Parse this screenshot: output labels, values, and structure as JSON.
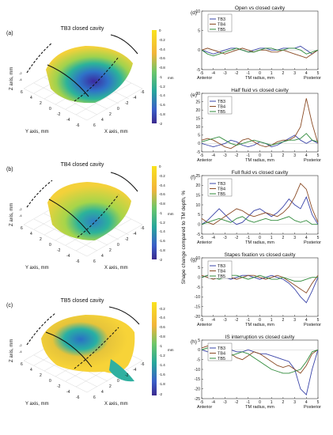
{
  "left_panels": [
    {
      "tag": "(a)",
      "title": "TB3 closed cavity",
      "zlabel": "Z axis, mm",
      "ylabel": "Y axis, mm",
      "xlabel": "X axis, mm",
      "yticks": [
        "6",
        "4",
        "2",
        "0",
        "-2",
        "-4",
        "-6"
      ],
      "xticks": [
        "-6",
        "-4",
        "-2",
        "0",
        "2",
        "4",
        "6"
      ],
      "zticks": [
        "-2",
        "-4"
      ],
      "colorbar": {
        "ticks": [
          "0",
          "-0.2",
          "-0.4",
          "-0.6",
          "-0.8",
          "-1",
          "-1.2",
          "-1.4",
          "-1.6",
          "-1.8",
          "-2"
        ],
        "unit": "mm"
      }
    },
    {
      "tag": "(b)",
      "title": "TB4 closed cavity",
      "zlabel": "Z axis, mm",
      "ylabel": "Y axis, mm",
      "xlabel": "X axis, mm",
      "yticks": [
        "6",
        "4",
        "2",
        "0",
        "-2",
        "-4",
        "-6"
      ],
      "xticks": [
        "-6",
        "-4",
        "-2",
        "0",
        "2",
        "4",
        "6"
      ],
      "zticks": [
        "-2",
        "-4"
      ],
      "colorbar": {
        "ticks": [
          "0",
          "-0.2",
          "-0.4",
          "-0.6",
          "-0.8",
          "-1",
          "-1.2",
          "-1.4",
          "-1.6",
          "-1.8",
          "-2"
        ],
        "unit": "mm"
      }
    },
    {
      "tag": "(c)",
      "title": "TB5 closed cavity",
      "zlabel": "Z axis, mm",
      "ylabel": "Y axis, mm",
      "xlabel": "X axis, mm",
      "yticks": [
        "6",
        "4",
        "2",
        "0",
        "-2",
        "-4",
        "-6"
      ],
      "xticks": [
        "-6",
        "-4",
        "-2",
        "0",
        "2",
        "4",
        "6"
      ],
      "zticks": [
        "-2",
        "-4"
      ],
      "colorbar": {
        "ticks": [
          "-0.2",
          "-0.4",
          "-0.6",
          "-0.8",
          "-1",
          "-1.2",
          "-1.4",
          "-1.6",
          "-1.8",
          "-2"
        ],
        "unit": "mm"
      }
    }
  ],
  "shared": {
    "ylabel": "Shape change compared to TM depth, %",
    "xlabel": "TM radius, mm",
    "anterior": "Anterior",
    "posterior": "Posterior",
    "colors": {
      "TB3": "#3a44a8",
      "TB4": "#8a4a24",
      "TB5": "#2f8a3a"
    }
  },
  "chart_data": [
    {
      "type": "line",
      "panel": "(d)",
      "title": "Open vs closed cavity",
      "xlim": [
        -5,
        5
      ],
      "ylim": [
        -5,
        10
      ],
      "yticks": [
        -5,
        0,
        5,
        10
      ],
      "xticks": [
        -5,
        -4,
        -3,
        -2,
        -1,
        0,
        1,
        2,
        3,
        4,
        5
      ],
      "x": [
        -5,
        -4.5,
        -4,
        -3.5,
        -3,
        -2.5,
        -2,
        -1.5,
        -1,
        -0.5,
        0,
        0.5,
        1,
        1.5,
        2,
        2.5,
        3,
        3.5,
        4,
        4.5,
        5
      ],
      "series": [
        {
          "name": "TB3",
          "values": [
            0,
            -0.5,
            -1,
            -0.5,
            0,
            0.5,
            0.5,
            0,
            -0.5,
            0,
            0.5,
            0.5,
            0,
            0,
            0.5,
            0.5,
            0.5,
            1,
            0,
            -1,
            0
          ]
        },
        {
          "name": "TB4",
          "values": [
            0,
            0.5,
            0,
            -0.5,
            -1,
            -0.5,
            0,
            0.5,
            0,
            -0.5,
            0,
            0,
            -0.5,
            -0.5,
            0,
            -0.5,
            -1,
            -1.5,
            -2,
            -1,
            0
          ]
        },
        {
          "name": "TB5",
          "values": [
            0,
            -1,
            -1.5,
            -1,
            -0.5,
            0,
            0.5,
            0,
            -0.5,
            -0.5,
            0,
            0.5,
            0.5,
            0,
            0,
            0.5,
            0.5,
            0,
            -1,
            -0.5,
            0
          ]
        }
      ]
    },
    {
      "type": "line",
      "panel": "(e)",
      "title": "Half fluid vs closed cavity",
      "xlim": [
        -5,
        5
      ],
      "ylim": [
        -5,
        30
      ],
      "yticks": [
        -5,
        0,
        5,
        10,
        15,
        20,
        25,
        30
      ],
      "xticks": [
        -5,
        -4,
        -3,
        -2,
        -1,
        0,
        1,
        2,
        3,
        4,
        5
      ],
      "x": [
        -5,
        -4.5,
        -4,
        -3.5,
        -3,
        -2.5,
        -2,
        -1.5,
        -1,
        -0.5,
        0,
        0.5,
        1,
        1.5,
        2,
        2.5,
        3,
        3.5,
        4,
        4.5,
        5
      ],
      "series": [
        {
          "name": "TB3",
          "values": [
            0,
            -1,
            -2,
            -1,
            0,
            2,
            1,
            -1,
            -2,
            -1,
            1,
            0,
            -2,
            -1,
            1,
            3,
            5,
            2,
            0,
            2,
            0
          ]
        },
        {
          "name": "TB4",
          "values": [
            2,
            3,
            2,
            0,
            -2,
            -3,
            -1,
            2,
            3,
            1,
            -1,
            -2,
            -1,
            1,
            2,
            2,
            4,
            10,
            27,
            12,
            0
          ]
        },
        {
          "name": "TB5",
          "values": [
            1,
            2,
            3,
            4,
            2,
            0,
            -1,
            0,
            1,
            2,
            1,
            0,
            -1,
            0,
            1,
            2,
            2,
            3,
            6,
            2,
            1
          ]
        }
      ]
    },
    {
      "type": "line",
      "panel": "(f)",
      "title": "Full fluid vs closed cavity",
      "xlim": [
        -5,
        5
      ],
      "ylim": [
        -5,
        25
      ],
      "yticks": [
        -5,
        0,
        5,
        10,
        15,
        20,
        25
      ],
      "xticks": [
        -5,
        -4,
        -3,
        -2,
        -1,
        0,
        1,
        2,
        3,
        4,
        5
      ],
      "x": [
        -5,
        -4.5,
        -4,
        -3.5,
        -3,
        -2.5,
        -2,
        -1.5,
        -1,
        -0.5,
        0,
        0.5,
        1,
        1.5,
        2,
        2.5,
        3,
        3.5,
        4,
        4.5,
        5
      ],
      "series": [
        {
          "name": "TB3",
          "values": [
            0,
            2,
            5,
            8,
            5,
            2,
            0,
            1,
            4,
            7,
            8,
            6,
            4,
            6,
            9,
            13,
            10,
            8,
            14,
            5,
            0
          ]
        },
        {
          "name": "TB4",
          "values": [
            3,
            1,
            0,
            2,
            4,
            6,
            8,
            7,
            5,
            4,
            5,
            6,
            5,
            4,
            6,
            9,
            14,
            21,
            18,
            8,
            1
          ]
        },
        {
          "name": "TB5",
          "values": [
            0,
            1,
            2,
            3,
            2,
            1,
            3,
            4,
            2,
            1,
            2,
            3,
            2,
            2,
            3,
            4,
            2,
            1,
            2,
            0,
            0
          ]
        }
      ]
    },
    {
      "type": "line",
      "panel": "(g)",
      "title": "Stapes fixation vs closed cavity",
      "xlim": [
        -5,
        5
      ],
      "ylim": [
        -20,
        10
      ],
      "yticks": [
        -20,
        -15,
        -10,
        -5,
        0,
        5,
        10
      ],
      "xticks": [
        -5,
        -4,
        -3,
        -2,
        -1,
        0,
        1,
        2,
        3,
        4,
        5
      ],
      "x": [
        -5,
        -4.5,
        -4,
        -3.5,
        -3,
        -2.5,
        -2,
        -1.5,
        -1,
        -0.5,
        0,
        0.5,
        1,
        1.5,
        2,
        2.5,
        3,
        3.5,
        4,
        4.5,
        5
      ],
      "series": [
        {
          "name": "TB3",
          "values": [
            0,
            1,
            2,
            1,
            0,
            -1,
            0,
            1,
            1,
            0,
            -1,
            0,
            1,
            0,
            -1,
            -3,
            -6,
            -10,
            -13,
            -7,
            0
          ]
        },
        {
          "name": "TB4",
          "values": [
            1,
            0,
            -1,
            0,
            1,
            0,
            -1,
            0,
            1,
            1,
            0,
            -1,
            0,
            1,
            0,
            -2,
            -4,
            -6,
            -8,
            -3,
            1
          ]
        },
        {
          "name": "TB5",
          "values": [
            0,
            1,
            0,
            -1,
            0,
            1,
            1,
            0,
            -1,
            0,
            1,
            0,
            -1,
            -1,
            0,
            -1,
            -2,
            -2,
            -1,
            0,
            0
          ]
        }
      ]
    },
    {
      "type": "line",
      "panel": "(h)",
      "title": "IS interruption vs closed cavity",
      "xlim": [
        -5,
        5
      ],
      "ylim": [
        -25,
        5
      ],
      "yticks": [
        -25,
        -20,
        -15,
        -10,
        -5,
        0,
        5
      ],
      "xticks": [
        -5,
        -4,
        -3,
        -2,
        -1,
        0,
        1,
        2,
        3,
        4,
        5
      ],
      "x": [
        -5,
        -4.5,
        -4,
        -3.5,
        -3,
        -2.5,
        -2,
        -1.5,
        -1,
        -0.5,
        0,
        0.5,
        1,
        1.5,
        2,
        2.5,
        3,
        3.5,
        4,
        4.5,
        5
      ],
      "series": [
        {
          "name": "TB3",
          "values": [
            0,
            -1,
            -1,
            0,
            1,
            0,
            -1,
            -1,
            0,
            -1,
            -2,
            -2,
            -3,
            -4,
            -5,
            -6,
            -10,
            -20,
            -23,
            -10,
            0
          ]
        },
        {
          "name": "TB4",
          "values": [
            1,
            2,
            3,
            2,
            0,
            -2,
            -4,
            -5,
            -3,
            -1,
            -2,
            -4,
            -6,
            -8,
            -9,
            -8,
            -10,
            -12,
            -8,
            -2,
            0
          ]
        },
        {
          "name": "TB5",
          "values": [
            0,
            1,
            0,
            -1,
            -2,
            -3,
            -2,
            -1,
            -2,
            -4,
            -6,
            -8,
            -10,
            -11,
            -12,
            -12,
            -11,
            -10,
            -6,
            -1,
            0
          ]
        }
      ]
    }
  ]
}
